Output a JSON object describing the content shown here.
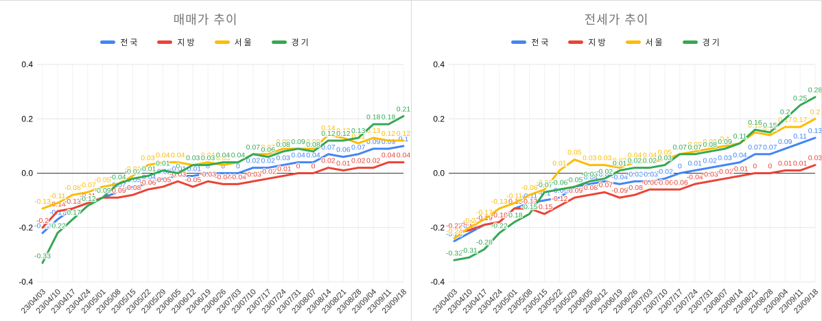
{
  "chart_data": [
    {
      "type": "line",
      "title": "매매가 추이",
      "x_labels": [
        "23/04/03",
        "23/04/10",
        "23/04/17",
        "23/04/24",
        "23/05/01",
        "23/05/08",
        "23/05/15",
        "23/05/22",
        "23/05/29",
        "23/06/05",
        "23/06/12",
        "23/06/19",
        "23/06/26",
        "23/07/03",
        "23/07/10",
        "23/07/17",
        "23/07/24",
        "23/07/31",
        "23/08/07",
        "23/08/14",
        "23/08/21",
        "23/08/28",
        "23/09/04",
        "23/09/11",
        "23/09/18"
      ],
      "y_ticks": [
        "0.4",
        "0.2",
        "0.0",
        "-0.2",
        "-0.4"
      ],
      "ylim": [
        -0.4,
        0.4
      ],
      "grid": true,
      "legend_position": "top",
      "series": [
        {
          "name": "전국",
          "color": "#4285F4",
          "values": [
            -0.22,
            -0.17,
            -0.13,
            -0.11,
            -0.09,
            -0.07,
            -0.05,
            -0.04,
            -0.02,
            -0.01,
            -0.01,
            0,
            0,
            0,
            0.02,
            0.02,
            0.03,
            0.04,
            0.04,
            0.07,
            0.06,
            0.07,
            0.09,
            0.09,
            0.1
          ]
        },
        {
          "name": "지방",
          "color": "#EA4335",
          "values": [
            -0.2,
            -0.14,
            -0.13,
            -0.11,
            -0.09,
            -0.09,
            -0.08,
            -0.06,
            -0.05,
            -0.03,
            -0.05,
            -0.03,
            -0.04,
            -0.04,
            -0.03,
            -0.02,
            -0.01,
            0,
            0,
            0.02,
            0.01,
            0.02,
            0.02,
            0.04,
            0.04
          ]
        },
        {
          "name": "서울",
          "color": "#FBBC04",
          "values": [
            -0.13,
            -0.11,
            -0.08,
            -0.07,
            -0.05,
            -0.04,
            -0.01,
            0.03,
            0.04,
            0.04,
            0.03,
            0.04,
            0.03,
            0.04,
            0.07,
            0.07,
            0.09,
            0.09,
            0.09,
            0.14,
            0.13,
            0.11,
            0.13,
            0.12,
            0.12
          ]
        },
        {
          "name": "경기",
          "color": "#34A853",
          "values": [
            -0.33,
            -0.22,
            -0.17,
            -0.12,
            -0.09,
            -0.04,
            -0.02,
            -0.01,
            0.01,
            0,
            0.03,
            0.03,
            0.04,
            0.04,
            0.07,
            0.06,
            0.08,
            0.09,
            0.08,
            0.12,
            0.12,
            0.13,
            0.18,
            0.18,
            0.21
          ]
        }
      ]
    },
    {
      "type": "line",
      "title": "전세가 추이",
      "x_labels": [
        "23/04/03",
        "23/04/10",
        "23/04/17",
        "23/04/24",
        "23/05/01",
        "23/05/08",
        "23/05/15",
        "23/05/22",
        "23/05/29",
        "23/06/05",
        "23/06/12",
        "23/06/19",
        "23/06/26",
        "23/07/03",
        "23/07/10",
        "23/07/17",
        "23/07/24",
        "23/07/31",
        "23/08/07",
        "23/08/14",
        "23/08/21",
        "23/08/28",
        "23/09/04",
        "23/09/11",
        "23/09/18"
      ],
      "y_ticks": [
        "0.4",
        "0.2",
        "0.0",
        "-0.2",
        "-0.4"
      ],
      "ylim": [
        -0.4,
        0.4
      ],
      "grid": true,
      "legend_position": "top",
      "series": [
        {
          "name": "전국",
          "color": "#4285F4",
          "values": [
            -0.25,
            -0.22,
            -0.19,
            -0.18,
            -0.13,
            -0.11,
            -0.1,
            -0.09,
            -0.05,
            -0.04,
            -0.03,
            -0.04,
            -0.03,
            -0.03,
            -0.02,
            0,
            0.01,
            0.02,
            0.03,
            0.04,
            0.07,
            0.07,
            0.09,
            0.11,
            0.13
          ]
        },
        {
          "name": "지방",
          "color": "#EA4335",
          "values": [
            -0.22,
            -0.21,
            -0.19,
            -0.18,
            -0.13,
            -0.13,
            -0.15,
            -0.12,
            -0.09,
            -0.08,
            -0.07,
            -0.09,
            -0.08,
            -0.06,
            -0.06,
            -0.06,
            -0.04,
            -0.03,
            -0.02,
            -0.01,
            0,
            0,
            0.01,
            0.01,
            0.03
          ]
        },
        {
          "name": "서울",
          "color": "#FBBC04",
          "values": [
            -0.24,
            -0.2,
            -0.17,
            -0.13,
            -0.11,
            -0.08,
            -0.06,
            0.01,
            0.05,
            0.03,
            0.03,
            0.02,
            0.04,
            0.04,
            0.05,
            0.07,
            0.08,
            0.09,
            0.1,
            0.11,
            0.15,
            0.14,
            0.17,
            0.17,
            0.2
          ]
        },
        {
          "name": "경기",
          "color": "#34A853",
          "values": [
            -0.32,
            -0.31,
            -0.28,
            -0.22,
            -0.18,
            -0.15,
            -0.07,
            -0.06,
            -0.05,
            -0.03,
            -0.02,
            0.01,
            0.02,
            0.02,
            0.03,
            0.07,
            0.07,
            0.08,
            0.09,
            0.11,
            0.16,
            0.15,
            0.2,
            0.25,
            0.28
          ]
        }
      ]
    }
  ],
  "style": {
    "grid_color": "#e6e6e6",
    "zero_line_color": "#333333",
    "axis_text_color": "#444444",
    "title_color": "#757575"
  }
}
